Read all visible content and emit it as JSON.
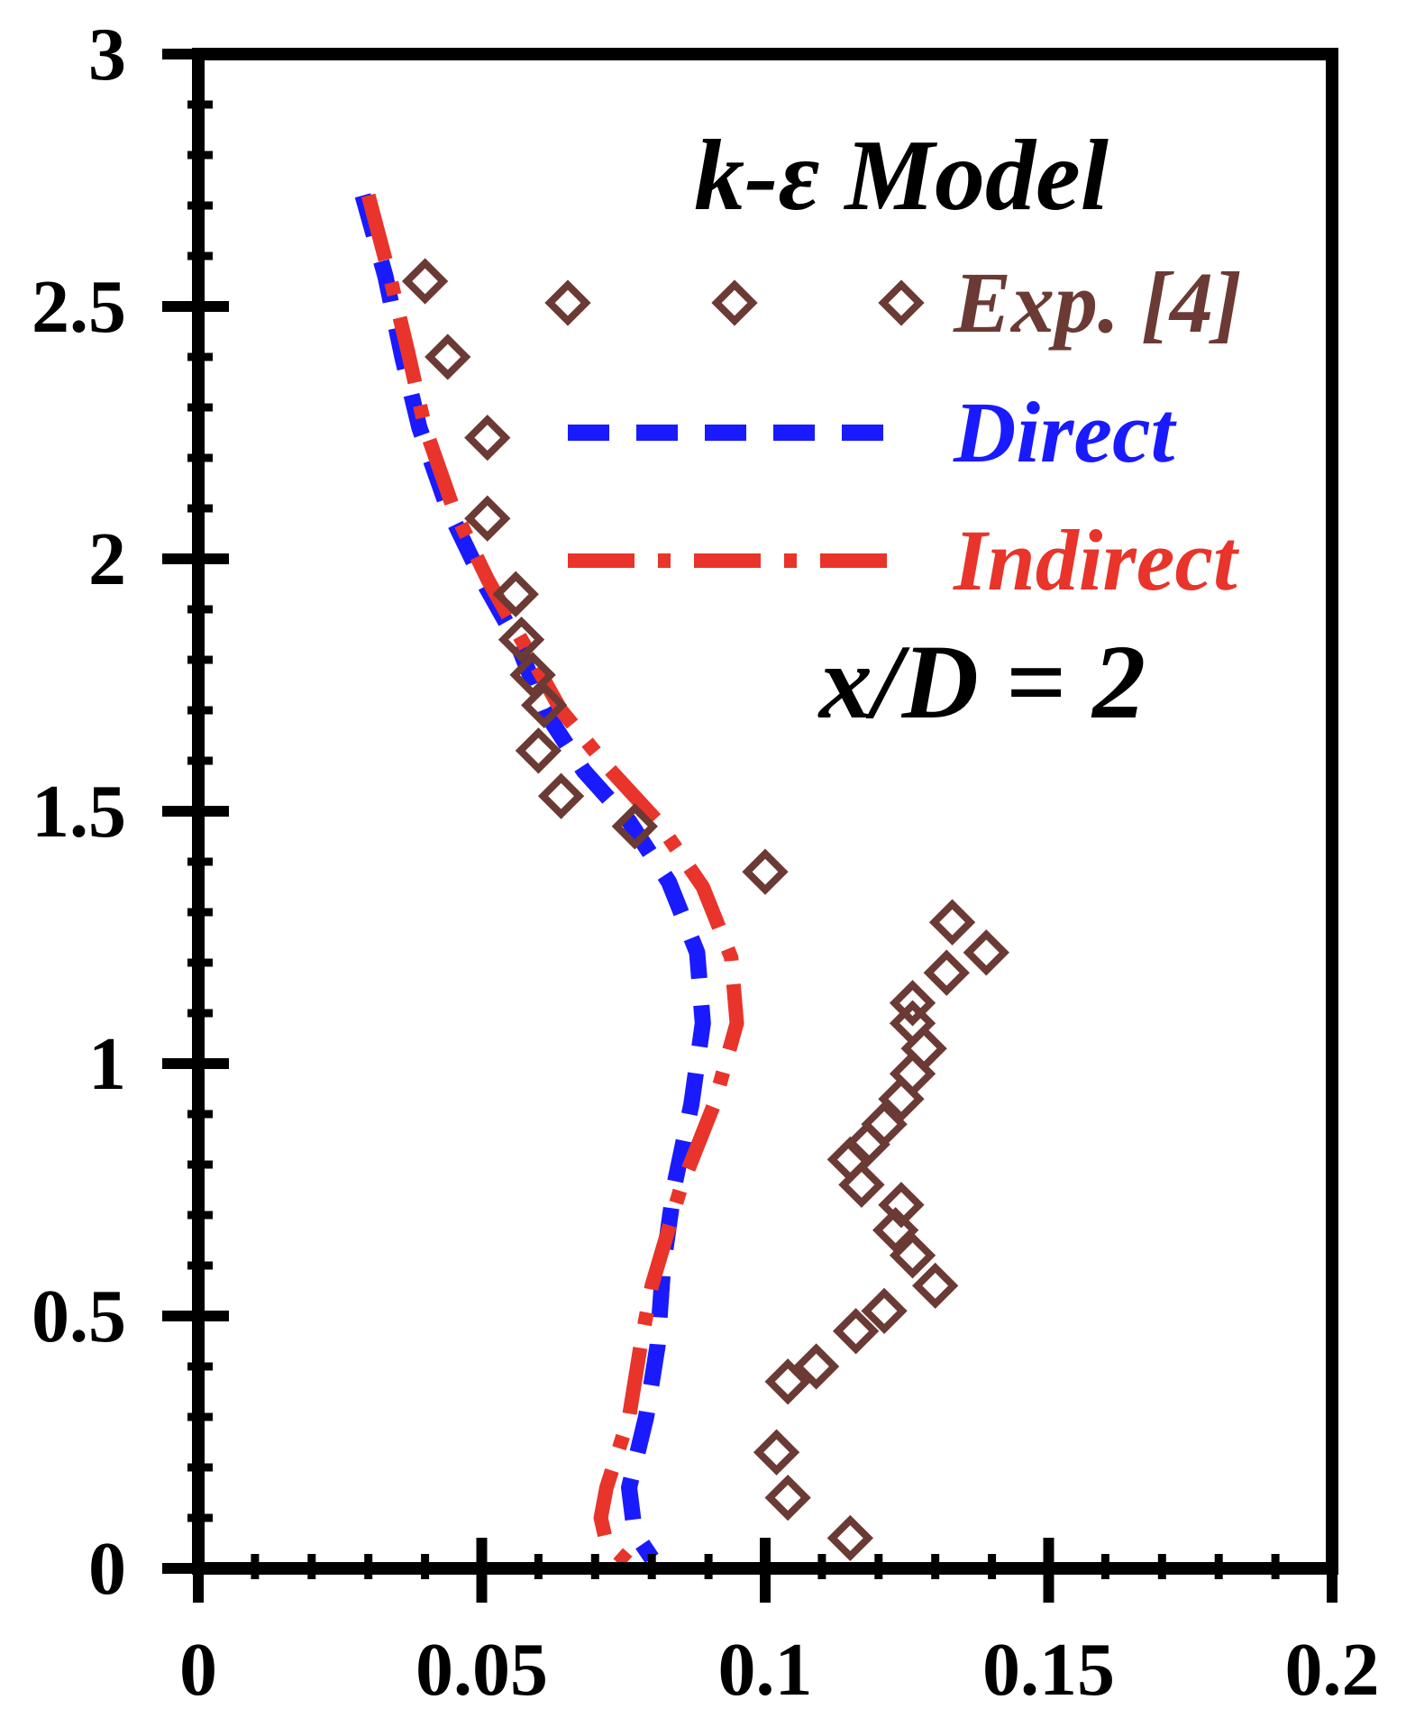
{
  "chart_data": {
    "type": "scatter",
    "xlim": [
      0,
      0.2
    ],
    "ylim": [
      0,
      3
    ],
    "x_ticks": [
      0,
      0.05,
      0.1,
      0.15,
      0.2
    ],
    "x_tick_labels": [
      "0",
      "0.05",
      "0.1",
      "0.15",
      "0.2"
    ],
    "y_ticks": [
      0,
      0.5,
      1,
      1.5,
      2,
      2.5,
      3
    ],
    "y_tick_labels": [
      "0",
      "0.5",
      "1",
      "1.5",
      "2",
      "2.5",
      "3"
    ],
    "grid": false,
    "legend_position": "top-right",
    "annotations": {
      "model": "k-ε Model",
      "station": "x/D = 2"
    },
    "series": [
      {
        "name": "Exp. [4]",
        "kind": "markers",
        "marker": "diamond",
        "color": "#6b3a34",
        "points": [
          [
            0.04,
            2.55
          ],
          [
            0.044,
            2.4
          ],
          [
            0.051,
            2.24
          ],
          [
            0.051,
            2.08
          ],
          [
            0.056,
            1.93
          ],
          [
            0.057,
            1.84
          ],
          [
            0.059,
            1.77
          ],
          [
            0.061,
            1.71
          ],
          [
            0.06,
            1.62
          ],
          [
            0.064,
            1.53
          ],
          [
            0.077,
            1.47
          ],
          [
            0.1,
            1.38
          ],
          [
            0.133,
            1.28
          ],
          [
            0.139,
            1.22
          ],
          [
            0.132,
            1.18
          ],
          [
            0.126,
            1.12
          ],
          [
            0.126,
            1.08
          ],
          [
            0.128,
            1.03
          ],
          [
            0.126,
            0.98
          ],
          [
            0.124,
            0.93
          ],
          [
            0.121,
            0.88
          ],
          [
            0.118,
            0.84
          ],
          [
            0.115,
            0.81
          ],
          [
            0.117,
            0.76
          ],
          [
            0.124,
            0.72
          ],
          [
            0.123,
            0.67
          ],
          [
            0.126,
            0.62
          ],
          [
            0.13,
            0.56
          ],
          [
            0.121,
            0.51
          ],
          [
            0.116,
            0.47
          ],
          [
            0.109,
            0.4
          ],
          [
            0.104,
            0.37
          ],
          [
            0.102,
            0.23
          ],
          [
            0.104,
            0.14
          ],
          [
            0.115,
            0.06
          ]
        ]
      },
      {
        "name": "Direct",
        "kind": "dashed-line",
        "color": "#1a1aff",
        "points": [
          [
            0.029,
            2.72
          ],
          [
            0.033,
            2.56
          ],
          [
            0.036,
            2.4
          ],
          [
            0.039,
            2.26
          ],
          [
            0.044,
            2.1
          ],
          [
            0.05,
            1.96
          ],
          [
            0.056,
            1.84
          ],
          [
            0.061,
            1.7
          ],
          [
            0.068,
            1.58
          ],
          [
            0.076,
            1.48
          ],
          [
            0.083,
            1.36
          ],
          [
            0.088,
            1.22
          ],
          [
            0.089,
            1.08
          ],
          [
            0.087,
            0.92
          ],
          [
            0.084,
            0.76
          ],
          [
            0.082,
            0.6
          ],
          [
            0.081,
            0.44
          ],
          [
            0.079,
            0.3
          ],
          [
            0.076,
            0.16
          ],
          [
            0.077,
            0.07
          ],
          [
            0.08,
            0.02
          ]
        ]
      },
      {
        "name": "Indirect",
        "kind": "dash-dot-line",
        "color": "#e8342a",
        "points": [
          [
            0.03,
            2.72
          ],
          [
            0.034,
            2.55
          ],
          [
            0.037,
            2.41
          ],
          [
            0.04,
            2.26
          ],
          [
            0.045,
            2.1
          ],
          [
            0.051,
            1.96
          ],
          [
            0.058,
            1.82
          ],
          [
            0.064,
            1.7
          ],
          [
            0.072,
            1.59
          ],
          [
            0.081,
            1.48
          ],
          [
            0.089,
            1.35
          ],
          [
            0.094,
            1.21
          ],
          [
            0.095,
            1.08
          ],
          [
            0.091,
            0.92
          ],
          [
            0.085,
            0.75
          ],
          [
            0.08,
            0.56
          ],
          [
            0.078,
            0.44
          ],
          [
            0.076,
            0.3
          ],
          [
            0.072,
            0.16
          ],
          [
            0.071,
            0.1
          ],
          [
            0.072,
            0.05
          ],
          [
            0.076,
            0.01
          ]
        ]
      }
    ]
  }
}
